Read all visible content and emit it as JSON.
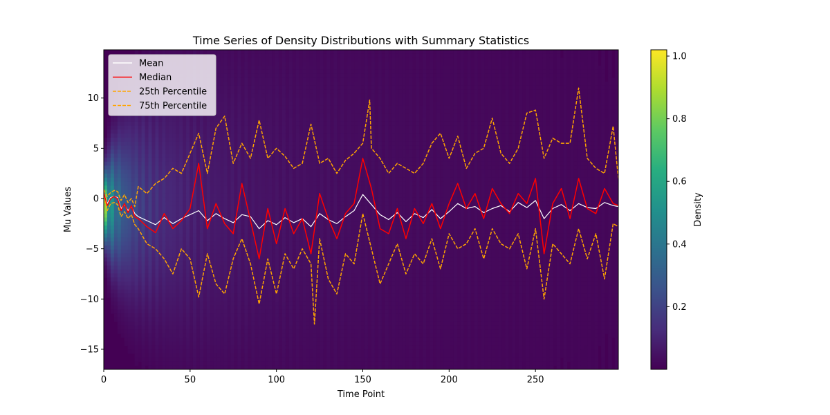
{
  "chart_data": {
    "type": "heatmap",
    "title": "Time Series of Density Distributions with Summary Statistics",
    "xlabel": "Time Point",
    "ylabel": "Mu Values",
    "xlim": [
      0,
      298
    ],
    "ylim": [
      -17,
      14.8
    ],
    "xticks": [
      0,
      50,
      100,
      150,
      200,
      250
    ],
    "yticks": [
      -15,
      -10,
      -5,
      0,
      5,
      10
    ],
    "colorbar": {
      "label": "Density",
      "range": [
        0,
        1.02
      ],
      "ticks": [
        0.2,
        0.4,
        0.6,
        0.8,
        1.0
      ],
      "colormap": "viridis"
    },
    "legend": {
      "placement": "upper-left",
      "entries": [
        "Mean",
        "Median",
        "25th Percentile",
        "75th Percentile"
      ]
    },
    "series": [
      {
        "name": "Mean",
        "color": "#ffffff",
        "style": "solid",
        "x": [
          0,
          2,
          4,
          6,
          8,
          10,
          12,
          14,
          16,
          18,
          20,
          25,
          30,
          35,
          40,
          45,
          50,
          55,
          60,
          65,
          70,
          75,
          80,
          85,
          90,
          95,
          100,
          105,
          110,
          115,
          120,
          125,
          130,
          135,
          140,
          145,
          150,
          155,
          160,
          165,
          170,
          175,
          180,
          185,
          190,
          195,
          200,
          205,
          210,
          215,
          220,
          225,
          230,
          235,
          240,
          245,
          250,
          255,
          260,
          265,
          270,
          275,
          280,
          285,
          290,
          295,
          298
        ],
        "values": [
          0.6,
          -0.5,
          0.1,
          0.2,
          0.1,
          -1.0,
          -0.6,
          -1.2,
          -0.8,
          -1.5,
          -1.8,
          -2.2,
          -2.6,
          -1.9,
          -2.5,
          -2.0,
          -1.6,
          -1.2,
          -2.2,
          -1.5,
          -2.0,
          -2.4,
          -1.6,
          -1.8,
          -3.0,
          -2.2,
          -2.6,
          -1.9,
          -2.4,
          -2.0,
          -2.8,
          -1.5,
          -2.1,
          -2.5,
          -1.8,
          -1.2,
          0.4,
          -0.6,
          -1.6,
          -2.1,
          -1.4,
          -2.3,
          -1.5,
          -1.9,
          -1.1,
          -2.0,
          -1.3,
          -0.5,
          -1.0,
          -0.8,
          -1.4,
          -1.0,
          -0.7,
          -1.3,
          -0.4,
          -0.9,
          -0.2,
          -2.0,
          -1.0,
          -0.6,
          -1.2,
          -0.5,
          -0.9,
          -1.0,
          -0.4,
          -0.7,
          -0.8
        ]
      },
      {
        "name": "Median",
        "color": "#ff0000",
        "style": "solid",
        "x": [
          0,
          2,
          4,
          6,
          8,
          10,
          12,
          14,
          16,
          18,
          20,
          25,
          30,
          35,
          40,
          45,
          50,
          55,
          60,
          65,
          70,
          75,
          80,
          85,
          90,
          95,
          100,
          105,
          110,
          115,
          120,
          125,
          130,
          135,
          140,
          145,
          150,
          155,
          160,
          165,
          170,
          175,
          180,
          185,
          190,
          195,
          200,
          205,
          210,
          215,
          220,
          225,
          230,
          235,
          240,
          245,
          250,
          255,
          260,
          265,
          270,
          275,
          280,
          285,
          290,
          295,
          298
        ],
        "values": [
          0.6,
          -0.7,
          0.0,
          0.2,
          0.0,
          -1.2,
          -0.5,
          -1.4,
          -0.7,
          -1.8,
          -2.0,
          -2.8,
          -3.4,
          -1.5,
          -3.0,
          -2.2,
          -1.0,
          3.5,
          -3.0,
          -0.5,
          -2.5,
          -3.5,
          1.5,
          -2.2,
          -6.0,
          -1.0,
          -4.5,
          -1.0,
          -3.5,
          -2.0,
          -5.5,
          0.5,
          -2.0,
          -4.0,
          -1.5,
          -0.5,
          4.0,
          1.0,
          -3.0,
          -3.5,
          -1.0,
          -4.0,
          -1.0,
          -2.5,
          -0.5,
          -3.0,
          -0.5,
          1.5,
          -1.0,
          0.5,
          -2.0,
          1.0,
          -0.5,
          -1.5,
          0.5,
          -0.5,
          2.0,
          -5.5,
          -0.5,
          1.0,
          -2.0,
          2.0,
          -1.0,
          -1.5,
          1.0,
          -0.5,
          -0.7
        ]
      },
      {
        "name": "25th Percentile",
        "color": "#ffa500",
        "style": "dashed",
        "x": [
          0,
          2,
          4,
          6,
          8,
          10,
          12,
          14,
          16,
          18,
          20,
          25,
          30,
          35,
          40,
          45,
          50,
          55,
          60,
          65,
          70,
          75,
          80,
          85,
          90,
          95,
          100,
          105,
          110,
          115,
          120,
          122,
          125,
          130,
          135,
          140,
          145,
          150,
          155,
          160,
          165,
          170,
          175,
          180,
          185,
          190,
          195,
          200,
          205,
          210,
          215,
          220,
          225,
          230,
          235,
          240,
          245,
          250,
          255,
          260,
          265,
          270,
          275,
          280,
          285,
          290,
          295,
          298
        ],
        "values": [
          0.3,
          -1.2,
          -0.5,
          -0.4,
          -0.6,
          -1.8,
          -1.3,
          -2.0,
          -1.6,
          -2.6,
          -3.0,
          -4.5,
          -5.0,
          -6.0,
          -7.5,
          -5.0,
          -6.0,
          -9.8,
          -5.5,
          -8.5,
          -9.5,
          -6.0,
          -4.0,
          -6.5,
          -10.5,
          -6.0,
          -9.5,
          -5.5,
          -7.0,
          -5.0,
          -6.5,
          -12.5,
          -4.0,
          -8.0,
          -9.5,
          -5.5,
          -6.5,
          -1.5,
          -5.0,
          -8.5,
          -6.5,
          -4.5,
          -7.5,
          -5.5,
          -6.5,
          -4.0,
          -7.0,
          -3.5,
          -5.0,
          -4.5,
          -3.0,
          -6.0,
          -3.0,
          -4.5,
          -5.0,
          -3.5,
          -7.0,
          -3.0,
          -10.0,
          -4.5,
          -5.5,
          -6.5,
          -3.0,
          -6.0,
          -3.5,
          -8.0,
          -2.5,
          -2.8
        ]
      },
      {
        "name": "75th Percentile",
        "color": "#ffa500",
        "style": "dashed",
        "x": [
          0,
          2,
          4,
          6,
          8,
          10,
          12,
          14,
          16,
          18,
          20,
          25,
          30,
          35,
          40,
          45,
          50,
          55,
          60,
          65,
          70,
          75,
          80,
          85,
          90,
          95,
          100,
          105,
          110,
          115,
          120,
          125,
          130,
          135,
          140,
          145,
          150,
          154,
          155,
          160,
          165,
          170,
          175,
          180,
          185,
          190,
          195,
          200,
          205,
          210,
          215,
          220,
          225,
          230,
          235,
          240,
          245,
          250,
          255,
          260,
          265,
          270,
          275,
          280,
          285,
          290,
          295,
          298
        ],
        "values": [
          0.9,
          0.2,
          0.6,
          0.8,
          0.7,
          -0.2,
          0.4,
          -0.4,
          0.0,
          -0.8,
          1.2,
          0.5,
          1.5,
          2.0,
          3.0,
          2.5,
          4.5,
          6.5,
          2.5,
          7.0,
          8.2,
          3.5,
          5.5,
          4.0,
          7.8,
          4.0,
          5.0,
          4.2,
          3.0,
          3.5,
          7.4,
          3.5,
          4.0,
          2.5,
          3.8,
          4.5,
          5.5,
          9.8,
          5.0,
          4.0,
          2.5,
          3.5,
          3.0,
          2.5,
          3.5,
          5.5,
          6.5,
          4.0,
          6.2,
          3.0,
          4.5,
          5.0,
          8.0,
          4.5,
          3.5,
          5.0,
          8.5,
          8.8,
          4.0,
          6.0,
          5.5,
          5.5,
          11.0,
          4.0,
          3.0,
          2.5,
          7.2,
          2.0
        ]
      }
    ],
    "density": {
      "description_values": "density peaks near 1.0 at x≈0, y≈0; decays with time",
      "peak": 1.0
    }
  }
}
